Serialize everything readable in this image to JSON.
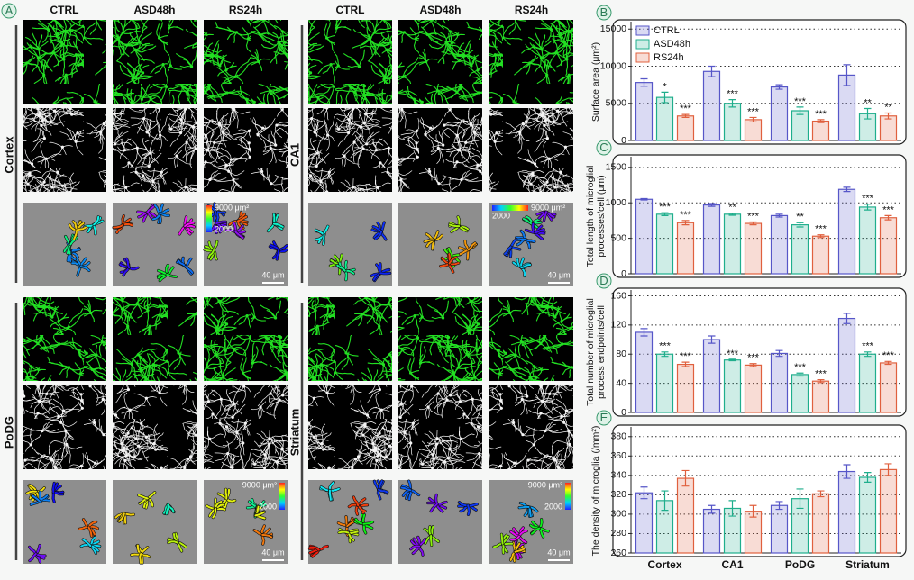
{
  "panel_a": {
    "label": "A",
    "blocks": [
      {
        "region": "Cortex",
        "columns": [
          "CTRL",
          "ASD48h",
          "RS24h"
        ],
        "colorbar": [
          "9000 μm²",
          "2000"
        ],
        "scale_bar": "40 μm"
      },
      {
        "region": "CA1",
        "columns": [
          "CTRL",
          "ASD48h",
          "RS24h"
        ],
        "colorbar": [
          "9000 μm²",
          "2000"
        ],
        "scale_bar": "40 μm"
      },
      {
        "region": "PoDG",
        "colorbar": [
          "9000 μm²",
          "2000"
        ],
        "scale_bar": "40 μm"
      },
      {
        "region": "Striatum",
        "colorbar": [
          "9000 μm²",
          "2000"
        ],
        "scale_bar": "40 μm"
      }
    ]
  },
  "chart_data": [
    {
      "type": "bar",
      "panel": "B",
      "y_label": [
        "Surface area (μm²)"
      ],
      "ylim": [
        0,
        16000
      ],
      "yticks": [
        0,
        5000,
        10000,
        15000
      ],
      "grid": true,
      "legend": "top-left",
      "series": [
        {
          "name": "CTRL",
          "color": "#5656c8",
          "values": [
            7800,
            9300,
            7200,
            8800
          ],
          "errors": [
            500,
            700,
            300,
            1400
          ],
          "significance": [
            null,
            null,
            null,
            null
          ]
        },
        {
          "name": "ASD48h",
          "color": "#1fae8c",
          "values": [
            5800,
            5000,
            4000,
            3600
          ],
          "errors": [
            700,
            500,
            500,
            700
          ],
          "significance": [
            "*",
            "***",
            "***",
            "**"
          ]
        },
        {
          "name": "RS24h",
          "color": "#e0603e",
          "values": [
            3300,
            2800,
            2600,
            3300
          ],
          "errors": [
            200,
            300,
            200,
            400
          ],
          "significance": [
            "***",
            "***",
            "***",
            "**"
          ]
        }
      ]
    },
    {
      "type": "bar",
      "panel": "C",
      "y_label": [
        "Total length of microglial",
        "processes/cell (μm)"
      ],
      "ylim": [
        0,
        1650
      ],
      "yticks": [
        0,
        500,
        1000,
        1500
      ],
      "grid": true,
      "series": [
        {
          "color": "#5656c8",
          "values": [
            1050,
            970,
            820,
            1190
          ],
          "errors": [
            10,
            20,
            20,
            30
          ],
          "significance": [
            null,
            null,
            null,
            null
          ]
        },
        {
          "color": "#1fae8c",
          "values": [
            840,
            840,
            690,
            940
          ],
          "errors": [
            20,
            15,
            30,
            40
          ],
          "significance": [
            "***",
            "**",
            "**",
            "***"
          ]
        },
        {
          "color": "#e0603e",
          "values": [
            720,
            710,
            530,
            790
          ],
          "errors": [
            30,
            20,
            20,
            30
          ],
          "significance": [
            "***",
            "***",
            "***",
            "***"
          ]
        }
      ]
    },
    {
      "type": "bar",
      "panel": "D",
      "y_label": [
        "Total number of microglial",
        "process endpoints/cell"
      ],
      "ylim": [
        0,
        168
      ],
      "yticks": [
        0,
        40,
        80,
        120,
        160
      ],
      "grid": true,
      "series": [
        {
          "color": "#5656c8",
          "values": [
            110,
            100,
            81,
            129
          ],
          "errors": [
            5,
            5,
            4,
            7
          ],
          "significance": [
            null,
            null,
            null,
            null
          ]
        },
        {
          "color": "#1fae8c",
          "values": [
            80,
            72,
            52,
            80
          ],
          "errors": [
            3,
            1,
            2,
            3
          ],
          "significance": [
            "***",
            "***",
            "***",
            "***"
          ]
        },
        {
          "color": "#e0603e",
          "values": [
            66,
            65,
            43,
            68
          ],
          "errors": [
            3,
            2,
            2,
            2
          ],
          "significance": [
            "***",
            "***",
            "***",
            "***"
          ]
        }
      ]
    },
    {
      "type": "bar",
      "panel": "E",
      "y_label": [
        "The density of microglia (/mm²)"
      ],
      "categories": [
        "Cortex",
        "CA1",
        "PoDG",
        "Striatum"
      ],
      "ylim": [
        260,
        390
      ],
      "yticks": [
        260,
        280,
        300,
        320,
        340,
        360,
        380
      ],
      "grid": true,
      "series": [
        {
          "color": "#5656c8",
          "values": [
            322,
            305,
            309,
            344
          ],
          "errors": [
            6,
            4,
            4,
            7
          ],
          "significance": [
            null,
            null,
            null,
            null
          ]
        },
        {
          "color": "#1fae8c",
          "values": [
            314,
            306,
            316,
            338
          ],
          "errors": [
            10,
            8,
            10,
            5
          ],
          "significance": [
            null,
            null,
            null,
            null
          ]
        },
        {
          "color": "#e0603e",
          "values": [
            337,
            303,
            321,
            346
          ],
          "errors": [
            8,
            6,
            3,
            6
          ],
          "significance": [
            null,
            null,
            null,
            null
          ]
        }
      ]
    }
  ]
}
